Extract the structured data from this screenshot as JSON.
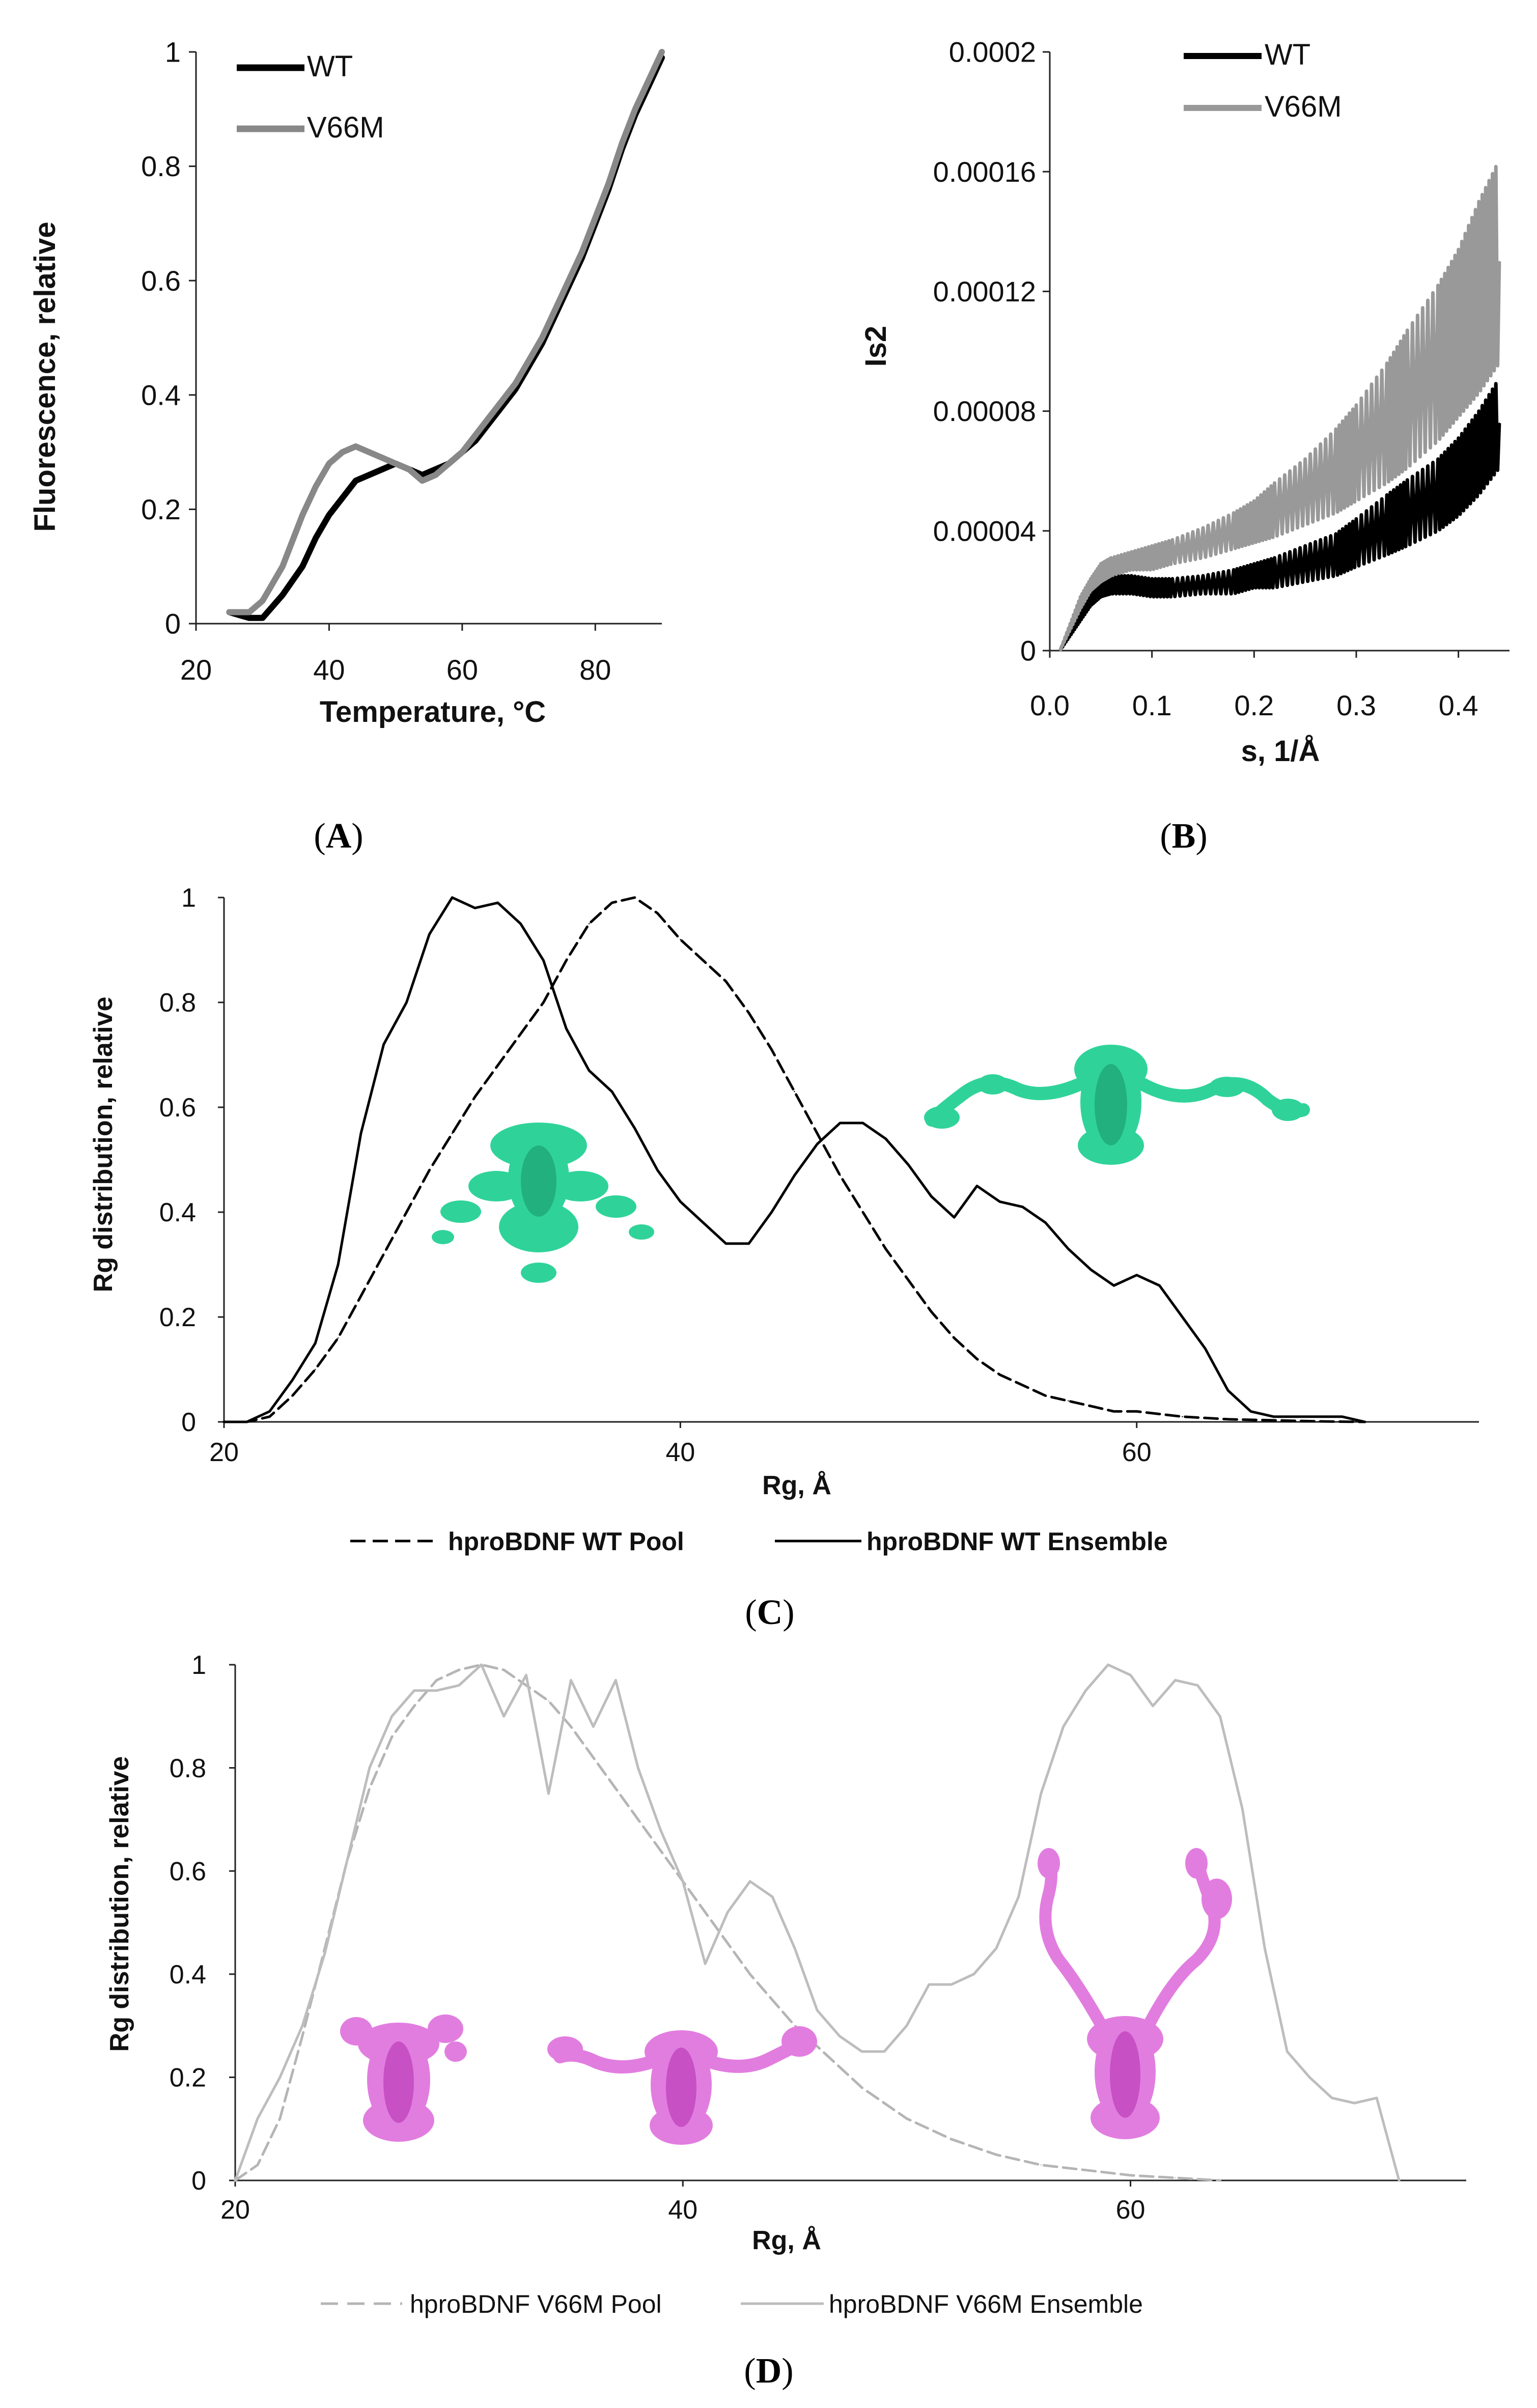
{
  "chart_data": [
    {
      "panel": "A",
      "type": "line",
      "title": "",
      "xlabel": "Temperature, °C",
      "ylabel": "Fluorescence, relative",
      "xlim": [
        20,
        90
      ],
      "ylim": [
        0,
        1
      ],
      "xticks": [
        20,
        40,
        60,
        80
      ],
      "yticks": [
        0,
        0.2,
        0.4,
        0.6,
        0.8,
        1
      ],
      "xtick_labels": [
        "20",
        "40",
        "60",
        "80"
      ],
      "ytick_labels": [
        "0",
        "0.2",
        "0.4",
        "0.6",
        "0.8",
        "1"
      ],
      "legend": "top-left",
      "series": [
        {
          "name": "WT",
          "color": "#000000",
          "x": [
            25,
            28,
            30,
            33,
            36,
            38,
            40,
            42,
            44,
            46,
            48,
            50,
            52,
            54,
            56,
            58,
            60,
            62,
            64,
            66,
            68,
            70,
            72,
            74,
            76,
            78,
            80,
            82,
            84,
            86,
            88,
            90
          ],
          "y": [
            0.02,
            0.01,
            0.01,
            0.05,
            0.1,
            0.15,
            0.19,
            0.22,
            0.25,
            0.26,
            0.27,
            0.28,
            0.27,
            0.26,
            0.27,
            0.28,
            0.3,
            0.32,
            0.35,
            0.38,
            0.41,
            0.45,
            0.49,
            0.54,
            0.59,
            0.64,
            0.7,
            0.76,
            0.83,
            0.89,
            0.94,
            0.99
          ]
        },
        {
          "name": "V66M",
          "color": "#888888",
          "x": [
            25,
            28,
            30,
            33,
            36,
            38,
            40,
            42,
            44,
            46,
            48,
            50,
            52,
            54,
            56,
            58,
            60,
            62,
            64,
            66,
            68,
            70,
            72,
            74,
            76,
            78,
            80,
            82,
            84,
            86,
            88,
            90
          ],
          "y": [
            0.02,
            0.02,
            0.04,
            0.1,
            0.19,
            0.24,
            0.28,
            0.3,
            0.31,
            0.3,
            0.29,
            0.28,
            0.27,
            0.25,
            0.26,
            0.28,
            0.3,
            0.33,
            0.36,
            0.39,
            0.42,
            0.46,
            0.5,
            0.55,
            0.6,
            0.65,
            0.71,
            0.77,
            0.84,
            0.9,
            0.95,
            1.0
          ]
        }
      ]
    },
    {
      "panel": "B",
      "type": "line",
      "title": "",
      "xlabel": "s, 1/Å",
      "ylabel": "Is2",
      "xlim": [
        0,
        0.45
      ],
      "ylim": [
        0,
        0.0002
      ],
      "xticks": [
        0,
        0.1,
        0.2,
        0.3,
        0.4
      ],
      "yticks": [
        0,
        4e-05,
        8e-05,
        0.00012,
        0.00016,
        0.0002
      ],
      "xtick_labels": [
        "0.0",
        "0.1",
        "0.2",
        "0.3",
        "0.4"
      ],
      "ytick_labels": [
        "0",
        "0.00004",
        "0.00008",
        "0.00012",
        "0.00016",
        "0.0002"
      ],
      "legend": "top-left",
      "series": [
        {
          "name": "WT",
          "color": "#000000",
          "x": [
            0.01,
            0.02,
            0.03,
            0.04,
            0.05,
            0.06,
            0.08,
            0.1,
            0.12,
            0.15,
            0.18,
            0.2,
            0.22,
            0.25,
            0.28,
            0.3,
            0.33,
            0.35,
            0.38,
            0.4,
            0.42,
            0.44
          ],
          "y": [
            0.0,
            6e-06,
            1.2e-05,
            1.7e-05,
            2e-05,
            2.2e-05,
            2.2e-05,
            2.1e-05,
            2.1e-05,
            2.2e-05,
            2.3e-05,
            2.5e-05,
            2.6e-05,
            2.9e-05,
            3.2e-05,
            3.6e-05,
            4.2e-05,
            4.6e-05,
            5.2e-05,
            5.8e-05,
            6.6e-05,
            7.6e-05
          ],
          "band": [
            0.0,
            1e-06,
            2e-06,
            2e-06,
            2e-06,
            3e-06,
            3e-06,
            3e-06,
            3e-06,
            3e-06,
            4e-06,
            4e-06,
            5e-06,
            6e-06,
            7e-06,
            8e-06,
            1e-05,
            1.1e-05,
            1.2e-05,
            1.3e-05,
            1.4e-05,
            1.5e-05
          ]
        },
        {
          "name": "V66M",
          "color": "#999999",
          "x": [
            0.01,
            0.02,
            0.03,
            0.04,
            0.05,
            0.06,
            0.08,
            0.1,
            0.12,
            0.15,
            0.18,
            0.2,
            0.22,
            0.25,
            0.28,
            0.3,
            0.33,
            0.35,
            0.38,
            0.4,
            0.42,
            0.44
          ],
          "y": [
            0.0,
            8e-06,
            1.6e-05,
            2.2e-05,
            2.6e-05,
            2.8e-05,
            3e-05,
            3.1e-05,
            3.3e-05,
            3.6e-05,
            4e-05,
            4.3e-05,
            4.7e-05,
            5.3e-05,
            6e-05,
            6.6e-05,
            7.6e-05,
            8.4e-05,
            9.6e-05,
            0.000106,
            0.000118,
            0.00013
          ],
          "band": [
            0.0,
            1e-06,
            2e-06,
            2e-06,
            3e-06,
            3e-06,
            3e-06,
            4e-06,
            4e-06,
            5e-06,
            6e-06,
            7e-06,
            9e-06,
            1.1e-05,
            1.4e-05,
            1.6e-05,
            2e-05,
            2.3e-05,
            2.6e-05,
            2.8e-05,
            3.2e-05,
            3.4e-05
          ]
        }
      ]
    },
    {
      "panel": "C",
      "type": "line",
      "title": "",
      "xlabel": "Rg, Å",
      "ylabel": "Rg distribution, relative",
      "xlim": [
        20,
        75
      ],
      "ylim": [
        0,
        1
      ],
      "xticks": [
        20,
        40,
        60
      ],
      "yticks": [
        0,
        0.2,
        0.4,
        0.6,
        0.8,
        1
      ],
      "xtick_labels": [
        "20",
        "40",
        "60"
      ],
      "ytick_labels": [
        "0",
        "0.2",
        "0.4",
        "0.6",
        "0.8",
        "1"
      ],
      "legend": "bottom",
      "series": [
        {
          "name": "hproBDNF WT Pool",
          "color": "#000000",
          "dash": true,
          "x": [
            20,
            21,
            22,
            23,
            24,
            25,
            26,
            27,
            28,
            29,
            30,
            31,
            32,
            33,
            34,
            35,
            36,
            37,
            38,
            39,
            40,
            41,
            42,
            43,
            44,
            45,
            46,
            47,
            48,
            49,
            50,
            51,
            52,
            53,
            54,
            55,
            56,
            57,
            58,
            59,
            60,
            62,
            64,
            66,
            68,
            70
          ],
          "y": [
            0,
            0,
            0.01,
            0.05,
            0.1,
            0.16,
            0.24,
            0.32,
            0.4,
            0.48,
            0.55,
            0.62,
            0.68,
            0.74,
            0.8,
            0.88,
            0.95,
            0.99,
            1.0,
            0.97,
            0.92,
            0.88,
            0.84,
            0.78,
            0.71,
            0.63,
            0.55,
            0.47,
            0.4,
            0.33,
            0.27,
            0.21,
            0.16,
            0.12,
            0.09,
            0.07,
            0.05,
            0.04,
            0.03,
            0.02,
            0.02,
            0.01,
            0.005,
            0.003,
            0.001,
            0
          ]
        },
        {
          "name": "hproBDNF WT Ensemble",
          "color": "#000000",
          "dash": false,
          "x": [
            20,
            21,
            22,
            23,
            24,
            25,
            26,
            27,
            28,
            29,
            30,
            31,
            32,
            33,
            34,
            35,
            36,
            37,
            38,
            39,
            40,
            41,
            42,
            43,
            44,
            45,
            46,
            47,
            48,
            49,
            50,
            51,
            52,
            53,
            54,
            55,
            56,
            57,
            58,
            59,
            60,
            61,
            62,
            63,
            64,
            65,
            66,
            67,
            68,
            69,
            70
          ],
          "y": [
            0,
            0,
            0.02,
            0.08,
            0.15,
            0.3,
            0.55,
            0.72,
            0.8,
            0.93,
            1.0,
            0.98,
            0.99,
            0.95,
            0.88,
            0.75,
            0.67,
            0.63,
            0.56,
            0.48,
            0.42,
            0.38,
            0.34,
            0.34,
            0.4,
            0.47,
            0.53,
            0.57,
            0.57,
            0.54,
            0.49,
            0.43,
            0.39,
            0.45,
            0.42,
            0.41,
            0.38,
            0.33,
            0.29,
            0.26,
            0.28,
            0.26,
            0.2,
            0.14,
            0.06,
            0.02,
            0.01,
            0.01,
            0.01,
            0.01,
            0
          ]
        }
      ]
    },
    {
      "panel": "D",
      "type": "line",
      "title": "",
      "xlabel": "Rg, Å",
      "ylabel": "Rg distribution, relative",
      "xlim": [
        20,
        75
      ],
      "ylim": [
        0,
        1
      ],
      "xticks": [
        20,
        40,
        60
      ],
      "yticks": [
        0,
        0.2,
        0.4,
        0.6,
        0.8,
        1
      ],
      "xtick_labels": [
        "20",
        "40",
        "60"
      ],
      "ytick_labels": [
        "0",
        "0.2",
        "0.4",
        "0.6",
        "0.8",
        "1"
      ],
      "legend": "bottom",
      "series": [
        {
          "name": "hproBDNF V66M Pool",
          "color": "#b5b5b5",
          "dash": true,
          "x": [
            20,
            21,
            22,
            23,
            24,
            25,
            26,
            27,
            28,
            29,
            30,
            31,
            32,
            33,
            34,
            35,
            36,
            37,
            38,
            39,
            40,
            41,
            42,
            43,
            44,
            45,
            46,
            47,
            48,
            49,
            50,
            52,
            54,
            56,
            58,
            60,
            62,
            64
          ],
          "y": [
            0,
            0.03,
            0.12,
            0.28,
            0.45,
            0.62,
            0.76,
            0.86,
            0.92,
            0.97,
            0.99,
            1.0,
            0.99,
            0.96,
            0.93,
            0.88,
            0.82,
            0.76,
            0.7,
            0.64,
            0.58,
            0.52,
            0.46,
            0.4,
            0.35,
            0.3,
            0.26,
            0.22,
            0.18,
            0.15,
            0.12,
            0.08,
            0.05,
            0.03,
            0.02,
            0.01,
            0.005,
            0
          ]
        },
        {
          "name": "hproBDNF V66M Ensemble",
          "color": "#bdbdbd",
          "dash": false,
          "x": [
            20,
            21,
            22,
            23,
            24,
            25,
            26,
            27,
            28,
            29,
            30,
            31,
            32,
            33,
            34,
            35,
            36,
            37,
            38,
            39,
            40,
            41,
            42,
            43,
            44,
            45,
            46,
            47,
            48,
            49,
            50,
            51,
            52,
            53,
            54,
            55,
            56,
            57,
            58,
            59,
            60,
            61,
            62,
            63,
            64,
            65,
            66,
            67,
            68,
            69,
            70,
            71,
            72
          ],
          "y": [
            0,
            0.12,
            0.2,
            0.3,
            0.44,
            0.62,
            0.8,
            0.9,
            0.95,
            0.95,
            0.96,
            1.0,
            0.9,
            0.98,
            0.75,
            0.97,
            0.88,
            0.97,
            0.8,
            0.68,
            0.58,
            0.42,
            0.52,
            0.58,
            0.55,
            0.45,
            0.33,
            0.28,
            0.25,
            0.25,
            0.3,
            0.38,
            0.38,
            0.4,
            0.45,
            0.55,
            0.75,
            0.88,
            0.95,
            1.0,
            0.98,
            0.92,
            0.97,
            0.96,
            0.9,
            0.72,
            0.45,
            0.25,
            0.2,
            0.16,
            0.15,
            0.16,
            0
          ]
        }
      ]
    }
  ],
  "legends": {
    "a": {
      "wt": "WT",
      "v66m": "V66M"
    },
    "b": {
      "wt": "WT",
      "v66m": "V66M"
    },
    "c": {
      "pool": "hproBDNF WT Pool",
      "ensemble": "hproBDNF WT Ensemble"
    },
    "d": {
      "pool": "hproBDNF V66M Pool",
      "ensemble": "hproBDNF V66M Ensemble"
    }
  },
  "panel_labels": {
    "a": "A",
    "b": "B",
    "c": "C",
    "d": "D"
  },
  "colors": {
    "wt_structure": "#2fd39a",
    "v66m_structure": "#e27de0"
  }
}
